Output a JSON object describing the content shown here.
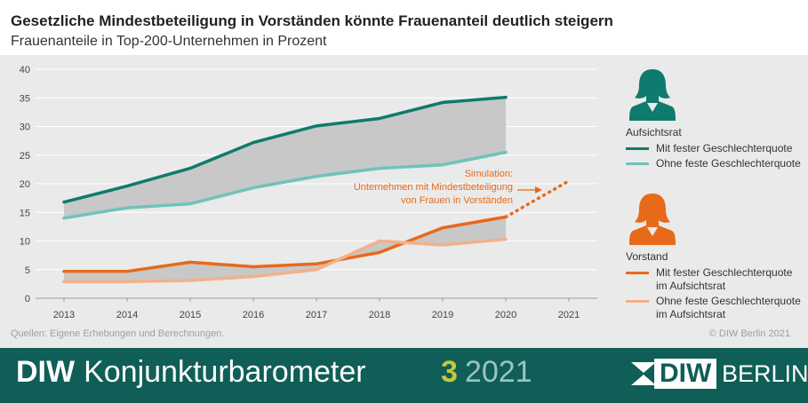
{
  "header": {
    "title": "Gesetzliche Mindestbeteiligung in Vorständen könnte Frauenanteil deutlich steigern",
    "subtitle": "Frauenanteile in Top-200-Unternehmen in Prozent"
  },
  "chart_data": {
    "type": "line",
    "title": "Gesetzliche Mindestbeteiligung in Vorständen könnte Frauenanteil deutlich steigern",
    "subtitle": "Frauenanteile in Top-200-Unternehmen in Prozent",
    "x": [
      2013,
      2014,
      2015,
      2016,
      2017,
      2018,
      2019,
      2020
    ],
    "x_ticks": [
      "2013",
      "2014",
      "2015",
      "2016",
      "2017",
      "2018",
      "2019",
      "2020",
      "2021"
    ],
    "y_ticks": [
      "0",
      "5",
      "10",
      "15",
      "20",
      "25",
      "30",
      "35",
      "40"
    ],
    "ylim": [
      0,
      40
    ],
    "grid": true,
    "series": [
      {
        "name": "Aufsichtsrat – Mit fester Geschlechterquote",
        "color": "#0f7a6e",
        "values": [
          16.8,
          19.6,
          22.7,
          27.2,
          30.1,
          31.4,
          34.2,
          35.1
        ]
      },
      {
        "name": "Aufsichtsrat – Ohne feste Geschlechterquote",
        "color": "#6fc3b8",
        "values": [
          14.0,
          15.8,
          16.5,
          19.3,
          21.3,
          22.7,
          23.3,
          25.5
        ]
      },
      {
        "name": "Vorstand – Mit fester Geschlechterquote im Aufsichtsrat",
        "color": "#e66a1a",
        "values": [
          4.7,
          4.7,
          6.3,
          5.5,
          6.0,
          8.0,
          12.3,
          14.2
        ]
      },
      {
        "name": "Vorstand – Ohne feste Geschlechterquote im Aufsichtsrat",
        "color": "#f3b08a",
        "values": [
          2.9,
          2.9,
          3.1,
          3.8,
          5.0,
          10.0,
          9.3,
          10.3
        ]
      }
    ],
    "simulation": {
      "x": [
        2020,
        2021
      ],
      "values": [
        14.2,
        20.5
      ],
      "color": "#e66a1a"
    },
    "annotation": [
      "Simulation:",
      "Unternehmen mit Mindestbeteiligung",
      "von Frauen in Vorständen"
    ],
    "fill_color": "#c8c8c8"
  },
  "legend": {
    "aufsichtsrat_title": "Aufsichtsrat",
    "aufsichtsrat_items": [
      "Mit fester Geschlechterquote",
      "Ohne feste Geschlechterquote"
    ],
    "vorstand_title": "Vorstand",
    "vorstand_items": [
      "Mit fester Geschlechterquote im Aufsichtsrat",
      "Ohne feste Geschlechterquote im Aufsichtsrat"
    ],
    "icons": {
      "aufsichtsrat": "woman-icon",
      "vorstand": "woman-icon"
    }
  },
  "footer": {
    "source": "Quellen: Eigene Erhebungen und Berechnungen.",
    "copyright": "© DIW Berlin 2021",
    "brand_bold": "DIW",
    "brand_rest": "Konjunkturbarometer",
    "issue_number": "3",
    "issue_year": "2021",
    "logo_diw": "DIW",
    "logo_berlin": "BERLIN"
  },
  "colors": {
    "teal_dark": "#0f7a6e",
    "teal_light": "#6fc3b8",
    "orange": "#e66a1a",
    "orange_light": "#f3b08a",
    "footer_bg": "#0f5e57"
  }
}
